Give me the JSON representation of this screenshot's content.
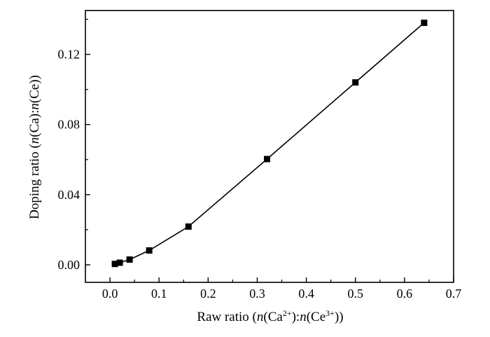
{
  "chart_data": {
    "type": "line",
    "xlabel": {
      "prefix": "Raw ratio (",
      "n1": "n",
      "ion1": "(Ca",
      "charge1": "2+",
      "mid": "):",
      "n2": "n",
      "ion2": "(Ce",
      "charge2": "3+",
      "suffix": "))"
    },
    "ylabel": {
      "prefix": "Doping ratio (",
      "n1": "n",
      "ion1": "(Ca):",
      "n2": "n",
      "suffix": "(Ce))"
    },
    "xlim": [
      -0.05,
      0.7
    ],
    "ylim": [
      -0.01,
      0.145
    ],
    "xticks": [
      0.0,
      0.1,
      0.2,
      0.3,
      0.4,
      0.5,
      0.6,
      0.7
    ],
    "xtick_labels": [
      "0.0",
      "0.1",
      "0.2",
      "0.3",
      "0.4",
      "0.5",
      "0.6",
      "0.7"
    ],
    "yticks": [
      0.0,
      0.04,
      0.08,
      0.12
    ],
    "ytick_labels": [
      "0.00",
      "0.04",
      "0.08",
      "0.12"
    ],
    "grid": false,
    "series": [
      {
        "marker": "square",
        "color": "#000000",
        "x": [
          0.01,
          0.02,
          0.04,
          0.08,
          0.16,
          0.32,
          0.5,
          0.64
        ],
        "y": [
          0.0005,
          0.0012,
          0.003,
          0.0082,
          0.0218,
          0.0603,
          0.104,
          0.138
        ]
      }
    ]
  }
}
